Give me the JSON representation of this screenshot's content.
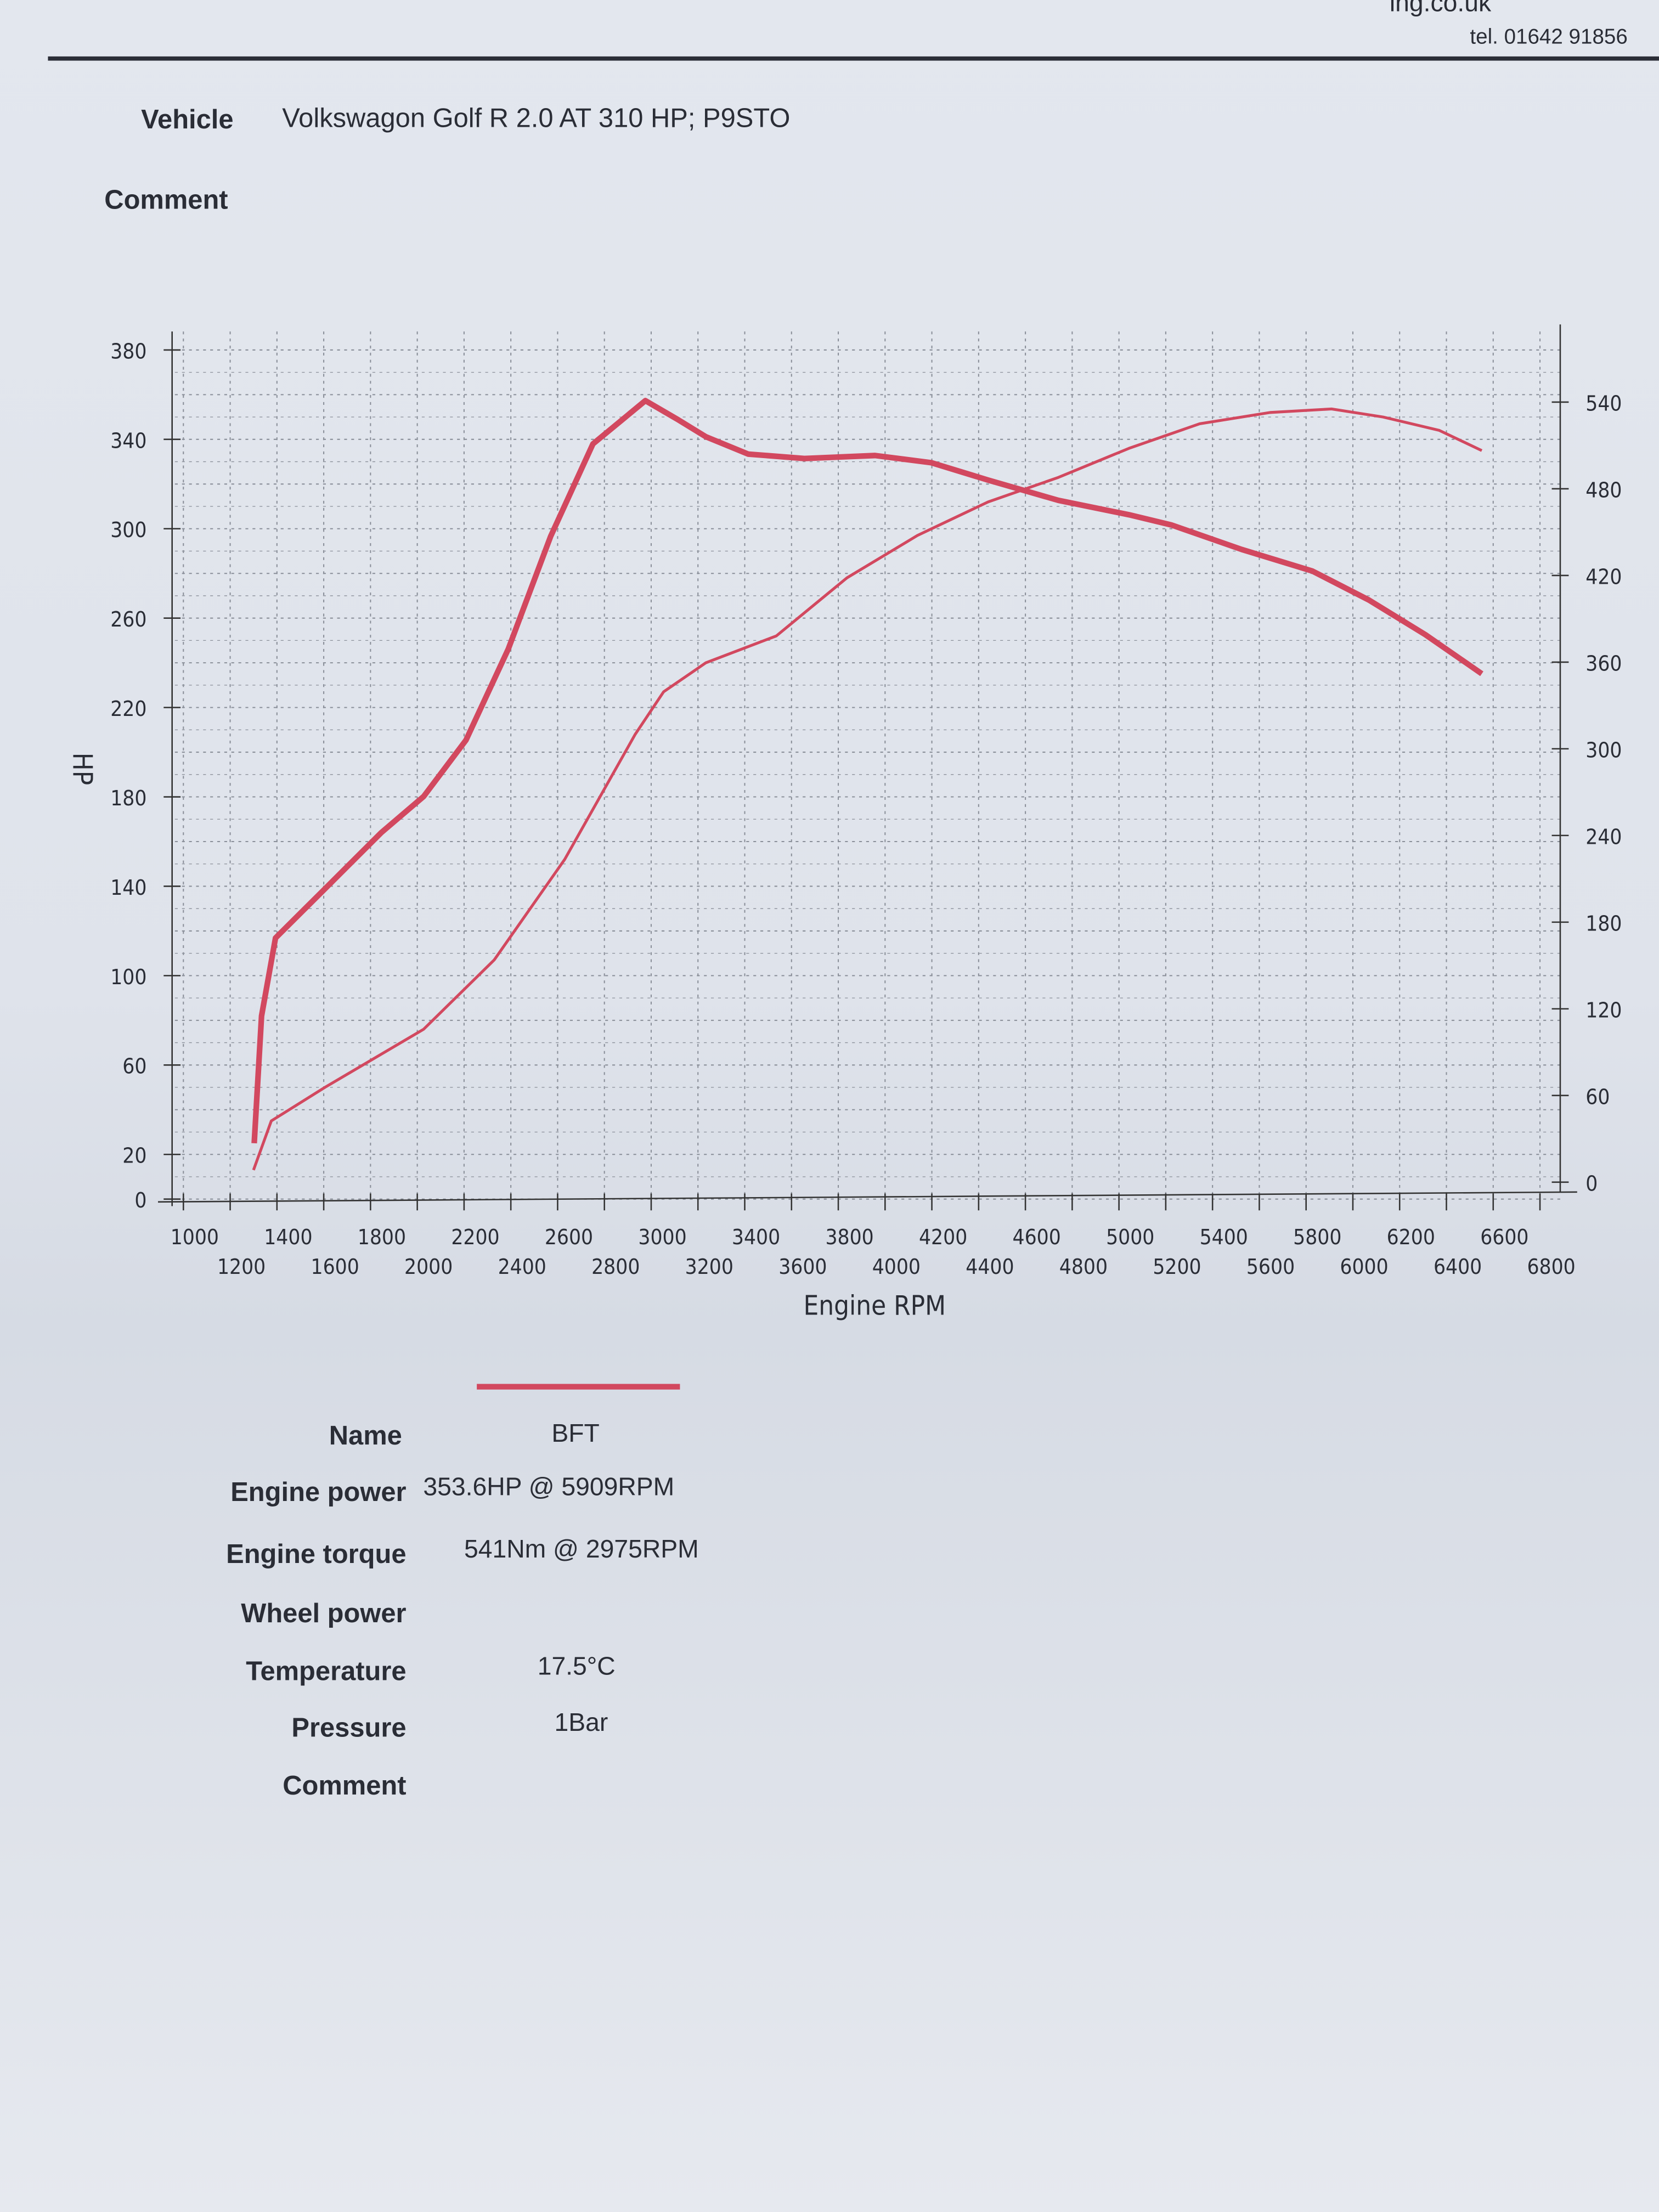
{
  "header": {
    "email_partial": "ing.co.uk",
    "phone": "tel. 01642 91856"
  },
  "vehicle": {
    "label": "Vehicle",
    "value": "Volkswagon Golf R 2.0 AT 310 HP; P9STO"
  },
  "comment_label": "Comment",
  "colors": {
    "curve": "#d2485f",
    "grid": "#8a8f99",
    "text": "#2a2d36"
  },
  "chart_data": {
    "type": "line",
    "xlabel": "Engine RPM",
    "ylabel": "HP",
    "ylabel_right": "",
    "xlim": [
      1000,
      6800
    ],
    "ylim": [
      0,
      385
    ],
    "ylim_right": [
      0,
      590
    ],
    "grid": true,
    "x_ticks": [
      1000,
      1200,
      1400,
      1600,
      1800,
      2000,
      2200,
      2400,
      2600,
      2800,
      3000,
      3200,
      3400,
      3600,
      3800,
      4000,
      4200,
      4400,
      4600,
      4800,
      5000,
      5200,
      5400,
      5600,
      5800,
      6000,
      6200,
      6400,
      6600,
      6800
    ],
    "y_ticks": [
      0,
      20,
      60,
      100,
      140,
      180,
      220,
      260,
      300,
      340,
      380
    ],
    "y_ticks_right": [
      0,
      60,
      120,
      180,
      240,
      300,
      360,
      420,
      480,
      540
    ],
    "series": [
      {
        "axis": "left",
        "style": "thin",
        "x": [
          1300,
          1376,
          1605,
          2027,
          2329,
          2630,
          2932,
          3053,
          3234,
          3535,
          3837,
          4138,
          4440,
          4741,
          5043,
          5345,
          5646,
          5909,
          6129,
          6370,
          6551
        ],
        "y": [
          13,
          35,
          50,
          76,
          107,
          152,
          208,
          227,
          240,
          252,
          278,
          297,
          312,
          323,
          336,
          347,
          352,
          353.6,
          350,
          344,
          335
        ]
      },
      {
        "axis": "right",
        "style": "thick",
        "x": [
          1303,
          1334,
          1394,
          1605,
          1846,
          2027,
          2208,
          2389,
          2570,
          2751,
          2975,
          3113,
          3234,
          3415,
          3655,
          3957,
          4198,
          4440,
          4741,
          5043,
          5224,
          5525,
          5827,
          6068,
          6310,
          6551
        ],
        "y": [
          27,
          115,
          169,
          203,
          242,
          267,
          306,
          369,
          447,
          511,
          541,
          528,
          516,
          504,
          501,
          503,
          498,
          486,
          472,
          462,
          455,
          438,
          423,
          403,
          379,
          352
        ]
      }
    ]
  },
  "legend": {
    "name_label": "Name",
    "name_value": "BFT"
  },
  "results": [
    {
      "label": "Engine power",
      "value": "353.6HP @  5909RPM"
    },
    {
      "label": "Engine torque",
      "value": "541Nm @ 2975RPM"
    },
    {
      "label": "Wheel power",
      "value": ""
    },
    {
      "label": "Temperature",
      "value": "17.5°C"
    },
    {
      "label": "Pressure",
      "value": "1Bar"
    },
    {
      "label": "Comment",
      "value": ""
    }
  ]
}
